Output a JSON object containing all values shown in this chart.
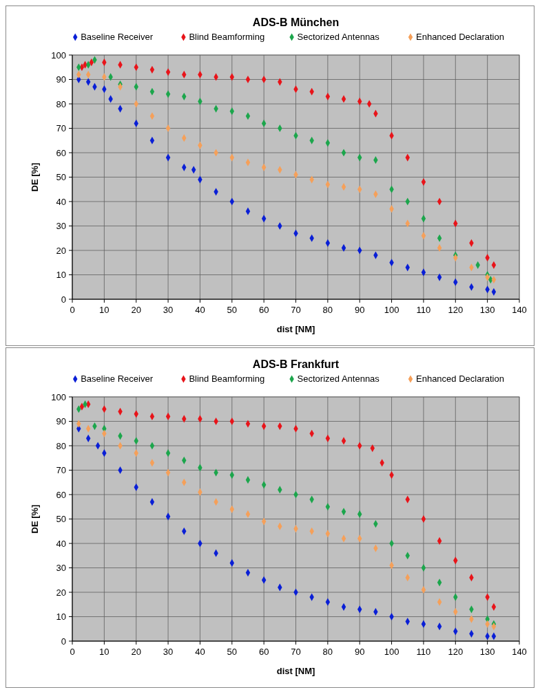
{
  "chart_data": [
    {
      "type": "scatter",
      "title": "ADS-B München",
      "xlabel": "dist [NM]",
      "ylabel": "DE [%]",
      "xlim": [
        0,
        140
      ],
      "xticks": [
        0,
        10,
        20,
        30,
        40,
        50,
        60,
        70,
        80,
        90,
        100,
        110,
        120,
        130,
        140
      ],
      "ylim": [
        0,
        100
      ],
      "yticks": [
        0,
        10,
        20,
        30,
        40,
        50,
        60,
        70,
        80,
        90,
        100
      ],
      "grid": true,
      "legend": "top",
      "marker": "diamond",
      "series": [
        {
          "name": "Baseline Receiver",
          "color": "#0a1fd6",
          "x": [
            2,
            5,
            7,
            10,
            12,
            15,
            20,
            25,
            30,
            35,
            38,
            40,
            45,
            50,
            55,
            60,
            65,
            70,
            75,
            80,
            85,
            90,
            95,
            100,
            105,
            110,
            115,
            120,
            125,
            130,
            132
          ],
          "values": [
            90,
            89,
            87,
            86,
            82,
            78,
            72,
            65,
            58,
            54,
            53,
            49,
            44,
            40,
            36,
            33,
            30,
            27,
            25,
            23,
            21,
            20,
            18,
            15,
            13,
            11,
            9,
            7,
            5,
            4,
            3
          ]
        },
        {
          "name": "Blind Beamforming",
          "color": "#e8141a",
          "x": [
            3,
            4,
            6,
            10,
            15,
            20,
            25,
            30,
            35,
            40,
            45,
            50,
            55,
            60,
            65,
            70,
            75,
            80,
            85,
            90,
            93,
            95,
            100,
            105,
            110,
            115,
            120,
            125,
            130,
            132
          ],
          "values": [
            95,
            96,
            97,
            97,
            96,
            95,
            94,
            93,
            92,
            92,
            91,
            91,
            90,
            90,
            89,
            86,
            85,
            83,
            82,
            81,
            80,
            76,
            67,
            58,
            48,
            40,
            31,
            23,
            17,
            14
          ]
        },
        {
          "name": "Sectorized Antennas",
          "color": "#1ca64c",
          "x": [
            2,
            5,
            7,
            12,
            15,
            20,
            25,
            30,
            35,
            40,
            45,
            50,
            55,
            60,
            65,
            70,
            75,
            80,
            85,
            90,
            95,
            100,
            105,
            110,
            115,
            120,
            127,
            130,
            131
          ],
          "values": [
            95,
            96,
            98,
            91,
            88,
            87,
            85,
            84,
            83,
            81,
            78,
            77,
            75,
            72,
            70,
            67,
            65,
            64,
            60,
            58,
            57,
            45,
            40,
            33,
            25,
            18,
            14,
            10,
            8
          ]
        },
        {
          "name": "Enhanced Declaration",
          "color": "#f5a05a",
          "x": [
            2,
            5,
            10,
            15,
            20,
            25,
            30,
            35,
            40,
            45,
            50,
            55,
            60,
            65,
            70,
            75,
            80,
            85,
            90,
            95,
            100,
            105,
            110,
            115,
            120,
            125,
            130,
            132
          ],
          "values": [
            92,
            92,
            91,
            87,
            80,
            75,
            70,
            66,
            63,
            60,
            58,
            56,
            54,
            53,
            51,
            49,
            47,
            46,
            45,
            43,
            37,
            31,
            26,
            21,
            17,
            13,
            9,
            8
          ]
        }
      ]
    },
    {
      "type": "scatter",
      "title": "ADS-B Frankfurt",
      "xlabel": "dist [NM]",
      "ylabel": "DE [%]",
      "xlim": [
        0,
        140
      ],
      "xticks": [
        0,
        10,
        20,
        30,
        40,
        50,
        60,
        70,
        80,
        90,
        100,
        110,
        120,
        130,
        140
      ],
      "ylim": [
        0,
        100
      ],
      "yticks": [
        0,
        10,
        20,
        30,
        40,
        50,
        60,
        70,
        80,
        90,
        100
      ],
      "grid": true,
      "legend": "top",
      "marker": "diamond",
      "series": [
        {
          "name": "Baseline Receiver",
          "color": "#0a1fd6",
          "x": [
            2,
            5,
            8,
            10,
            15,
            20,
            25,
            30,
            35,
            40,
            45,
            50,
            55,
            60,
            65,
            70,
            75,
            80,
            85,
            90,
            95,
            100,
            105,
            110,
            115,
            120,
            125,
            130,
            132
          ],
          "values": [
            87,
            83,
            80,
            77,
            70,
            63,
            57,
            51,
            45,
            40,
            36,
            32,
            28,
            25,
            22,
            20,
            18,
            16,
            14,
            13,
            12,
            10,
            8,
            7,
            6,
            4,
            3,
            2,
            2
          ]
        },
        {
          "name": "Blind Beamforming",
          "color": "#e8141a",
          "x": [
            3,
            5,
            10,
            15,
            20,
            25,
            30,
            35,
            40,
            45,
            50,
            55,
            60,
            65,
            70,
            75,
            80,
            85,
            90,
            94,
            97,
            100,
            105,
            110,
            115,
            120,
            125,
            130,
            132
          ],
          "values": [
            96,
            97,
            95,
            94,
            93,
            92,
            92,
            91,
            91,
            90,
            90,
            89,
            88,
            88,
            87,
            85,
            83,
            82,
            80,
            79,
            73,
            68,
            58,
            50,
            41,
            33,
            26,
            18,
            14
          ]
        },
        {
          "name": "Sectorized Antennas",
          "color": "#1ca64c",
          "x": [
            2,
            4,
            7,
            10,
            15,
            20,
            25,
            30,
            35,
            40,
            45,
            50,
            55,
            60,
            65,
            70,
            75,
            80,
            85,
            90,
            95,
            100,
            105,
            110,
            115,
            120,
            125,
            130,
            132
          ],
          "values": [
            95,
            97,
            88,
            87,
            84,
            82,
            80,
            77,
            74,
            71,
            69,
            68,
            66,
            64,
            62,
            60,
            58,
            55,
            53,
            52,
            48,
            40,
            35,
            30,
            24,
            18,
            13,
            9,
            7
          ]
        },
        {
          "name": "Enhanced Declaration",
          "color": "#f5a05a",
          "x": [
            2,
            5,
            10,
            15,
            20,
            25,
            30,
            35,
            40,
            45,
            50,
            55,
            60,
            65,
            70,
            75,
            80,
            85,
            90,
            95,
            100,
            105,
            110,
            115,
            120,
            125,
            130,
            132
          ],
          "values": [
            89,
            87,
            85,
            80,
            77,
            73,
            69,
            65,
            61,
            57,
            54,
            52,
            49,
            47,
            46,
            45,
            44,
            42,
            42,
            38,
            31,
            26,
            21,
            16,
            12,
            9,
            7,
            6
          ]
        }
      ]
    }
  ]
}
